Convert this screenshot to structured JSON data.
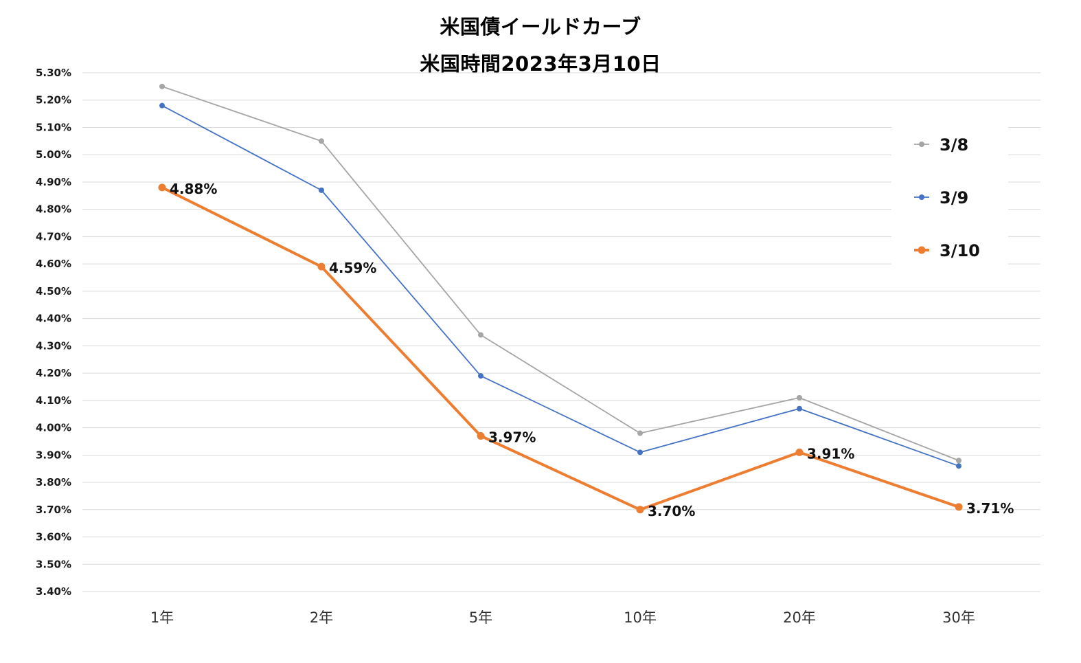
{
  "chart_data": {
    "type": "line",
    "title": "米国債イールドカーブ",
    "subtitle": "米国時間2023年3月10日",
    "categories": [
      "1年",
      "2年",
      "5年",
      "10年",
      "20年",
      "30年"
    ],
    "series": [
      {
        "name": "3/8",
        "color": "#a5a5a5",
        "values": [
          5.25,
          5.05,
          4.34,
          3.98,
          4.11,
          3.88
        ],
        "show_labels": false
      },
      {
        "name": "3/9",
        "color": "#4472c4",
        "values": [
          5.18,
          4.87,
          4.19,
          3.91,
          4.07,
          3.86
        ],
        "show_labels": false
      },
      {
        "name": "3/10",
        "color": "#ed7d31",
        "values": [
          4.88,
          4.59,
          3.97,
          3.7,
          3.91,
          3.71
        ],
        "show_labels": true,
        "labels": [
          "4.88%",
          "4.59%",
          "3.97%",
          "3.70%",
          "3.91%",
          "3.71%"
        ]
      }
    ],
    "ylim": [
      3.4,
      5.3
    ],
    "yticks": [
      "5.30%",
      "5.20%",
      "5.10%",
      "5.00%",
      "4.90%",
      "4.80%",
      "4.70%",
      "4.60%",
      "4.50%",
      "4.40%",
      "4.30%",
      "4.20%",
      "4.10%",
      "4.00%",
      "3.90%",
      "3.80%",
      "3.70%",
      "3.60%",
      "3.50%",
      "3.40%"
    ],
    "ytick_values": [
      5.3,
      5.2,
      5.1,
      5.0,
      4.9,
      4.8,
      4.7,
      4.6,
      4.5,
      4.4,
      4.3,
      4.2,
      4.1,
      4.0,
      3.9,
      3.8,
      3.7,
      3.6,
      3.5,
      3.4
    ],
    "grid": true,
    "legend_position": "right",
    "xlabel": "",
    "ylabel": ""
  }
}
